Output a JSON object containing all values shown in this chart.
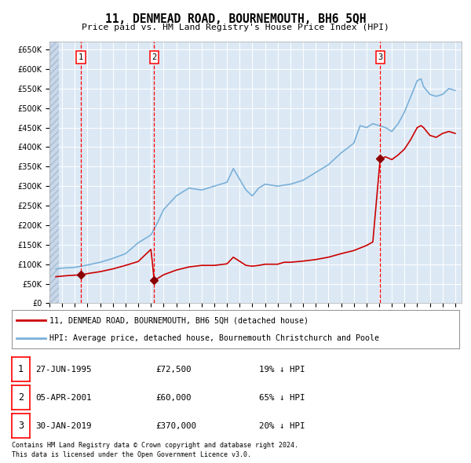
{
  "title": "11, DENMEAD ROAD, BOURNEMOUTH, BH6 5QH",
  "subtitle": "Price paid vs. HM Land Registry's House Price Index (HPI)",
  "background_color": "#dce9f5",
  "ylim": [
    0,
    670000
  ],
  "yticks": [
    0,
    50000,
    100000,
    150000,
    200000,
    250000,
    300000,
    350000,
    400000,
    450000,
    500000,
    550000,
    600000,
    650000
  ],
  "sale_dates_num": [
    1995.49,
    2001.26,
    2019.08
  ],
  "sale_prices": [
    72500,
    60000,
    370000
  ],
  "sale_labels": [
    "1",
    "2",
    "3"
  ],
  "legend_line1": "11, DENMEAD ROAD, BOURNEMOUTH, BH6 5QH (detached house)",
  "legend_line2": "HPI: Average price, detached house, Bournemouth Christchurch and Poole",
  "table_rows": [
    {
      "num": "1",
      "date": "27-JUN-1995",
      "price": "£72,500",
      "hpi": "19% ↓ HPI"
    },
    {
      "num": "2",
      "date": "05-APR-2001",
      "price": "£60,000",
      "hpi": "65% ↓ HPI"
    },
    {
      "num": "3",
      "date": "30-JAN-2019",
      "price": "£370,000",
      "hpi": "20% ↓ HPI"
    }
  ],
  "footnote1": "Contains HM Land Registry data © Crown copyright and database right 2024.",
  "footnote2": "This data is licensed under the Open Government Licence v3.0.",
  "red_color": "#cc0000",
  "line_blue_color": "#7ab0d9",
  "hpi_years": [
    1993.5,
    1994.0,
    1995.0,
    1996.0,
    1997.0,
    1998.0,
    1999.0,
    2000.0,
    2001.0,
    2001.5,
    2002.0,
    2003.0,
    2004.0,
    2005.0,
    2006.0,
    2007.0,
    2007.5,
    2008.5,
    2009.0,
    2009.5,
    2010.0,
    2011.0,
    2012.0,
    2013.0,
    2014.0,
    2015.0,
    2016.0,
    2017.0,
    2017.5,
    2018.0,
    2018.5,
    2019.0,
    2019.5,
    2020.0,
    2020.5,
    2021.0,
    2021.5,
    2022.0,
    2022.3,
    2022.5,
    2023.0,
    2023.5,
    2024.0,
    2024.5,
    2025.0
  ],
  "hpi_prices": [
    88000,
    90000,
    92000,
    98000,
    105000,
    115000,
    127000,
    155000,
    175000,
    205000,
    240000,
    275000,
    295000,
    290000,
    300000,
    310000,
    345000,
    290000,
    275000,
    295000,
    305000,
    300000,
    305000,
    315000,
    335000,
    355000,
    385000,
    410000,
    455000,
    450000,
    460000,
    455000,
    450000,
    440000,
    460000,
    490000,
    530000,
    570000,
    575000,
    555000,
    535000,
    530000,
    535000,
    550000,
    545000
  ],
  "red_years": [
    1993.5,
    1994.5,
    1995.0,
    1995.49,
    1996.0,
    1997.0,
    1998.0,
    1999.0,
    2000.0,
    2001.0,
    2001.26,
    2001.5,
    2002.0,
    2003.0,
    2004.0,
    2005.0,
    2006.0,
    2007.0,
    2007.5,
    2008.5,
    2009.0,
    2009.5,
    2010.0,
    2011.0,
    2011.5,
    2012.0,
    2013.0,
    2014.0,
    2015.0,
    2016.0,
    2017.0,
    2018.0,
    2018.5,
    2019.08,
    2019.5,
    2020.0,
    2020.5,
    2021.0,
    2021.5,
    2022.0,
    2022.3,
    2022.5,
    2023.0,
    2023.5,
    2024.0,
    2024.5,
    2025.0
  ],
  "red_prices": [
    68000,
    71000,
    72000,
    72500,
    76000,
    81000,
    88000,
    97000,
    107000,
    138000,
    60000,
    63000,
    73000,
    85000,
    93000,
    97000,
    97000,
    101000,
    118000,
    97000,
    95000,
    97000,
    100000,
    100000,
    105000,
    105000,
    108000,
    112000,
    118000,
    127000,
    135000,
    148000,
    157000,
    370000,
    375000,
    368000,
    380000,
    395000,
    420000,
    450000,
    455000,
    450000,
    430000,
    425000,
    435000,
    440000,
    435000
  ]
}
